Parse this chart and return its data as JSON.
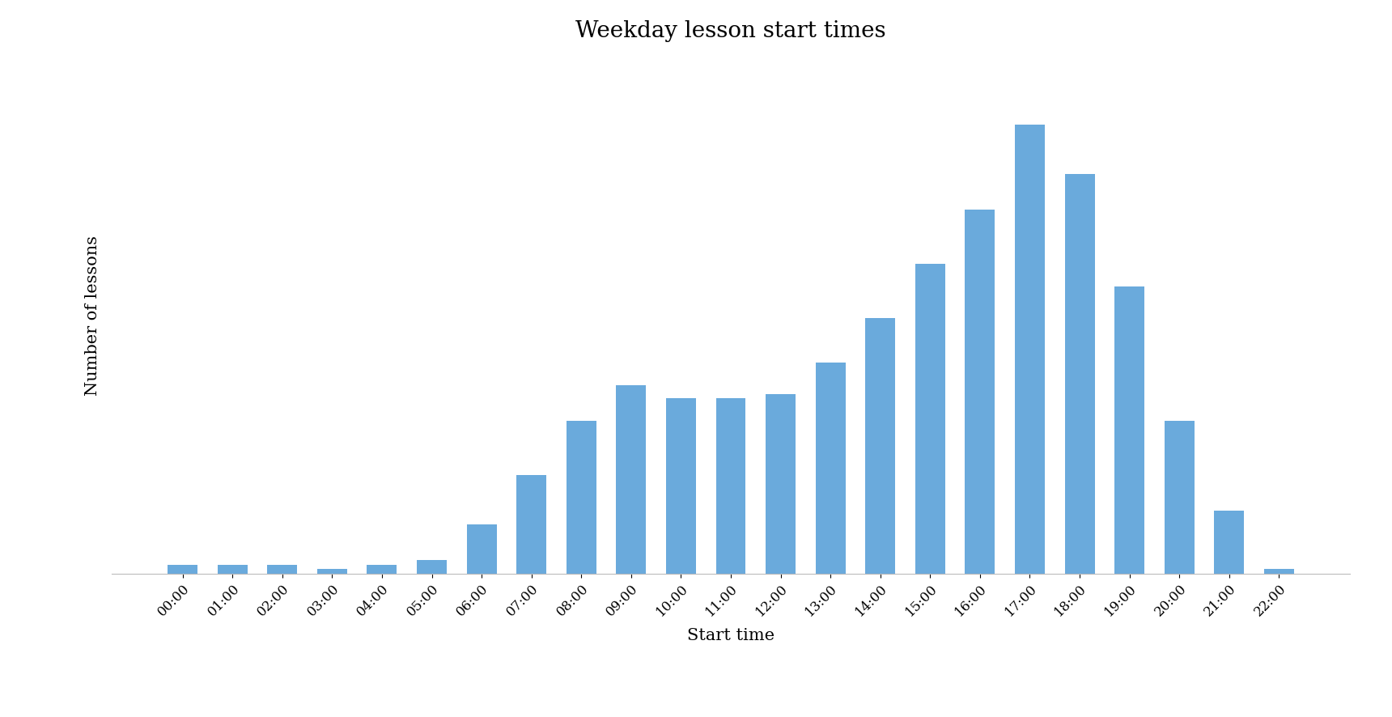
{
  "title": "Weekday lesson start times",
  "xlabel": "Start time",
  "ylabel": "Number of lessons",
  "categories": [
    "00:00",
    "01:00",
    "02:00",
    "03:00",
    "04:00",
    "05:00",
    "06:00",
    "07:00",
    "08:00",
    "09:00",
    "10:00",
    "11:00",
    "12:00",
    "13:00",
    "14:00",
    "15:00",
    "16:00",
    "17:00",
    "18:00",
    "19:00",
    "20:00",
    "21:00",
    "22:00"
  ],
  "values": [
    2,
    2,
    2,
    1,
    2,
    3,
    11,
    22,
    34,
    42,
    39,
    39,
    40,
    47,
    57,
    69,
    81,
    100,
    89,
    64,
    34,
    14,
    1
  ],
  "bar_color": "#6aaadc",
  "background_color": "#ffffff",
  "title_fontsize": 20,
  "label_fontsize": 15,
  "tick_fontsize": 12,
  "bar_width": 0.6,
  "grid_color": "#d8e4f0",
  "ylim_min": 0,
  "ylim_max": 115
}
